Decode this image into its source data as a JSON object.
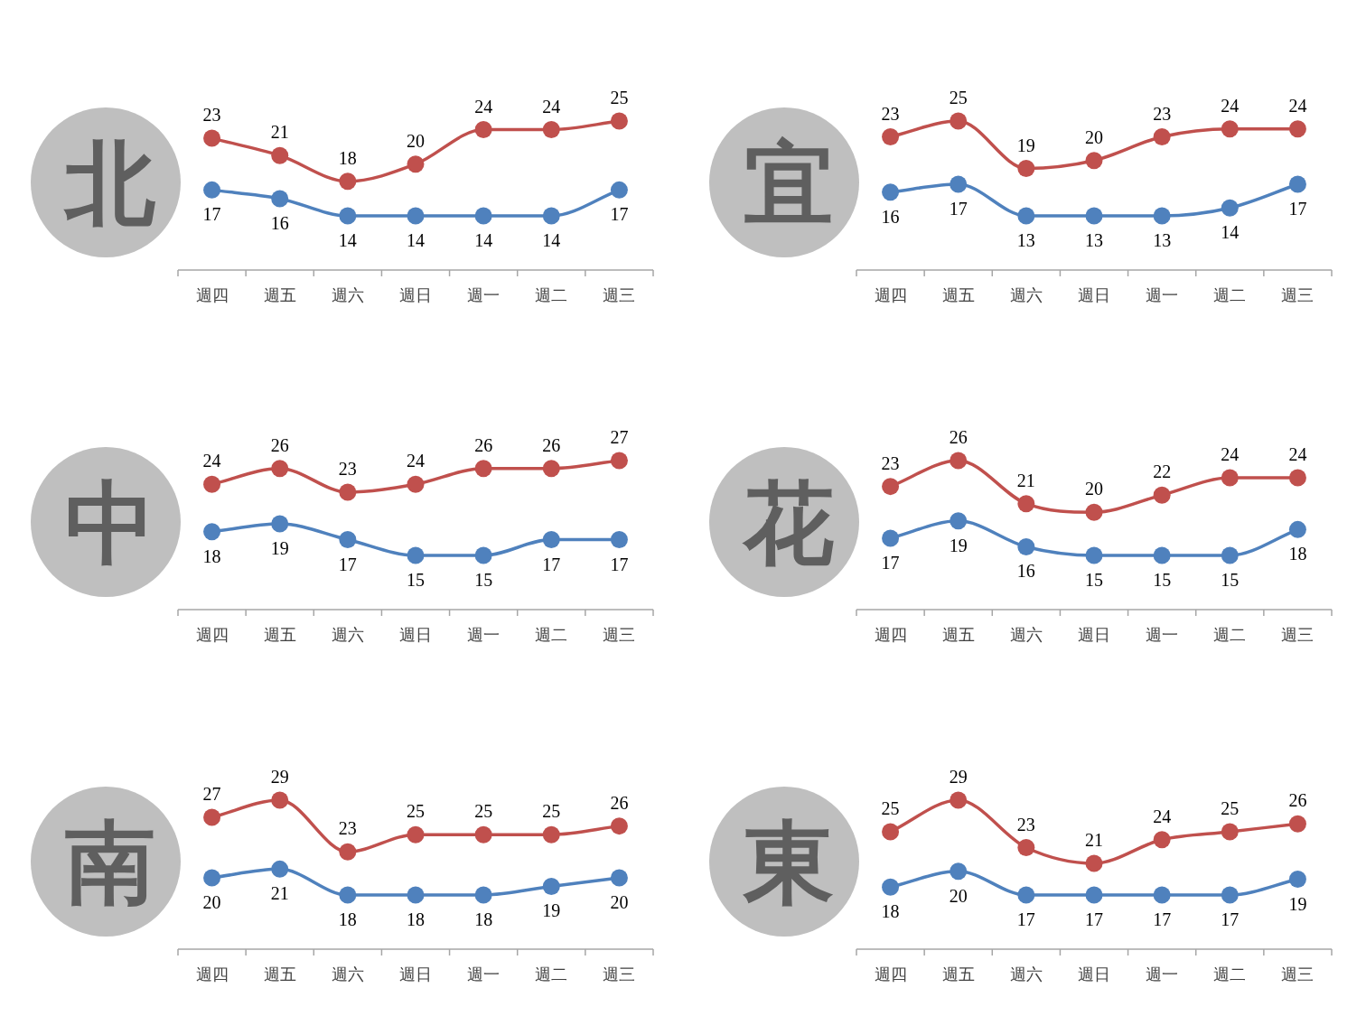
{
  "chart_data": [
    {
      "type": "line",
      "title": "北",
      "categories": [
        "週四",
        "週五",
        "週六",
        "週日",
        "週一",
        "週二",
        "週三"
      ],
      "marker": "circle",
      "data_labels": true,
      "series": [
        {
          "color": "#c0504d",
          "values": [
            23,
            21,
            18,
            20,
            24,
            24,
            25
          ]
        },
        {
          "color": "#4f81bd",
          "values": [
            17,
            16,
            14,
            14,
            14,
            14,
            17
          ]
        }
      ]
    },
    {
      "type": "line",
      "title": "宜",
      "categories": [
        "週四",
        "週五",
        "週六",
        "週日",
        "週一",
        "週二",
        "週三"
      ],
      "marker": "circle",
      "data_labels": true,
      "series": [
        {
          "color": "#c0504d",
          "values": [
            23,
            25,
            19,
            20,
            23,
            24,
            24
          ]
        },
        {
          "color": "#4f81bd",
          "values": [
            16,
            17,
            13,
            13,
            13,
            14,
            17
          ]
        }
      ]
    },
    {
      "type": "line",
      "title": "中",
      "categories": [
        "週四",
        "週五",
        "週六",
        "週日",
        "週一",
        "週二",
        "週三"
      ],
      "marker": "circle",
      "data_labels": true,
      "series": [
        {
          "color": "#c0504d",
          "values": [
            24,
            26,
            23,
            24,
            26,
            26,
            27
          ]
        },
        {
          "color": "#4f81bd",
          "values": [
            18,
            19,
            17,
            15,
            15,
            17,
            17
          ]
        }
      ]
    },
    {
      "type": "line",
      "title": "花",
      "categories": [
        "週四",
        "週五",
        "週六",
        "週日",
        "週一",
        "週二",
        "週三"
      ],
      "marker": "circle",
      "data_labels": true,
      "series": [
        {
          "color": "#c0504d",
          "values": [
            23,
            26,
            21,
            20,
            22,
            24,
            24
          ]
        },
        {
          "color": "#4f81bd",
          "values": [
            17,
            19,
            16,
            15,
            15,
            15,
            18
          ]
        }
      ]
    },
    {
      "type": "line",
      "title": "南",
      "categories": [
        "週四",
        "週五",
        "週六",
        "週日",
        "週一",
        "週二",
        "週三"
      ],
      "marker": "circle",
      "data_labels": true,
      "series": [
        {
          "color": "#c0504d",
          "values": [
            27,
            29,
            23,
            25,
            25,
            25,
            26
          ]
        },
        {
          "color": "#4f81bd",
          "values": [
            20,
            21,
            18,
            18,
            18,
            19,
            20
          ]
        }
      ]
    },
    {
      "type": "line",
      "title": "東",
      "categories": [
        "週四",
        "週五",
        "週六",
        "週日",
        "週一",
        "週二",
        "週三"
      ],
      "marker": "circle",
      "data_labels": true,
      "series": [
        {
          "color": "#c0504d",
          "values": [
            25,
            29,
            23,
            21,
            24,
            25,
            26
          ]
        },
        {
          "color": "#4f81bd",
          "values": [
            18,
            20,
            17,
            17,
            17,
            17,
            19
          ]
        }
      ]
    }
  ]
}
